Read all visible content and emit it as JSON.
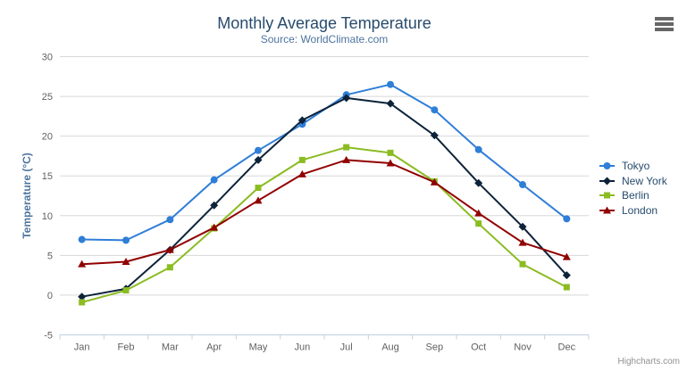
{
  "header": {
    "title": "Monthly Average Temperature",
    "subtitle": "Source: WorldClimate.com"
  },
  "chart_data": {
    "type": "line",
    "title": "Monthly Average Temperature",
    "subtitle": "Source: WorldClimate.com",
    "categories": [
      "Jan",
      "Feb",
      "Mar",
      "Apr",
      "May",
      "Jun",
      "Jul",
      "Aug",
      "Sep",
      "Oct",
      "Nov",
      "Dec"
    ],
    "series": [
      {
        "name": "Tokyo",
        "color": "#2f7ed8",
        "marker": "circle",
        "values": [
          7.0,
          6.9,
          9.5,
          14.5,
          18.2,
          21.5,
          25.2,
          26.5,
          23.3,
          18.3,
          13.9,
          9.6
        ]
      },
      {
        "name": "New York",
        "color": "#0d233a",
        "marker": "diamond",
        "values": [
          -0.2,
          0.8,
          5.7,
          11.3,
          17.0,
          22.0,
          24.8,
          24.1,
          20.1,
          14.1,
          8.6,
          2.5
        ]
      },
      {
        "name": "Berlin",
        "color": "#8bbc21",
        "marker": "square",
        "values": [
          -0.9,
          0.6,
          3.5,
          8.4,
          13.5,
          17.0,
          18.6,
          17.9,
          14.3,
          9.0,
          3.9,
          1.0
        ]
      },
      {
        "name": "London",
        "color": "#910000",
        "marker": "triangle",
        "values": [
          3.9,
          4.2,
          5.7,
          8.5,
          11.9,
          15.2,
          17.0,
          16.6,
          14.2,
          10.3,
          6.6,
          4.8
        ]
      }
    ],
    "xlabel": "",
    "ylabel": "Temperature (°C)",
    "ylim": [
      -5,
      30
    ],
    "ytick_step": 5,
    "yticks": [
      -5,
      0,
      5,
      10,
      15,
      20,
      25,
      30
    ],
    "grid": true,
    "legend_position": "right"
  },
  "colors": {
    "title": "#274b6d",
    "subtitle": "#4d759e",
    "axis_title": "#4d759e",
    "axis_labels": "#606060",
    "grid": "#d8d8d8",
    "axis_line": "#c0d0e0",
    "credits": "#909090",
    "menu_icon": "#666666",
    "background": "#ffffff"
  },
  "credits": {
    "label": "Highcharts.com"
  }
}
